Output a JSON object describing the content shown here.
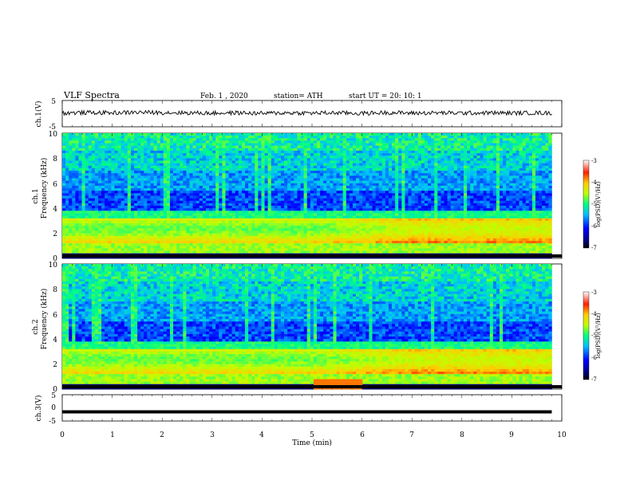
{
  "header": {
    "title": "VLF  Spectra",
    "date": "Feb. 1  , 2020",
    "station": "station= ATH",
    "start": "start  UT  =   20: 10: 1"
  },
  "chart_data": [
    {
      "type": "line",
      "panel": "ch1-waveform",
      "ylabel": "ch.1(V)",
      "ylim": [
        -5,
        5
      ],
      "yticks": [
        "5",
        "-5"
      ],
      "x": [
        0,
        0.5,
        1,
        1.5,
        2,
        2.5,
        3,
        3.5,
        4,
        4.5,
        5,
        5.5,
        6,
        6.5,
        7,
        7.5,
        8,
        8.5,
        9,
        9.5,
        9.8
      ],
      "y": [
        0.2,
        0.4,
        0.3,
        0.5,
        0.4,
        0.3,
        0.2,
        0.3,
        0.1,
        0.3,
        0.2,
        0.3,
        0.1,
        0.4,
        0.2,
        0.3,
        0.2,
        0.3,
        0.2,
        0.3,
        0.2
      ]
    },
    {
      "type": "heatmap",
      "panel": "ch1-spectrogram",
      "ylabel_channel": "ch.1",
      "ylabel": "Frequency  (kHz)",
      "ylim": [
        0,
        10
      ],
      "yticks": [
        "10",
        "8",
        "6",
        "4",
        "2",
        "0"
      ],
      "xlim": [
        0,
        10
      ],
      "colorbar": {
        "label": "log(PSD)(V²/Hz)",
        "range": [
          -7,
          -3
        ],
        "ticks": [
          "-3",
          "-4",
          "-5",
          "-6",
          "-7"
        ]
      }
    },
    {
      "type": "heatmap",
      "panel": "ch2-spectrogram",
      "ylabel_channel": "ch.2",
      "ylabel": "Frequency  (kHz)",
      "ylim": [
        0,
        10
      ],
      "yticks": [
        "10",
        "8",
        "6",
        "4",
        "2",
        "0"
      ],
      "xlim": [
        0,
        10
      ],
      "colorbar": {
        "label": "log(PSD)(V²/Hz)",
        "range": [
          -7,
          -3
        ],
        "ticks": [
          "-3",
          "-4",
          "-5",
          "-6",
          "-7"
        ]
      }
    },
    {
      "type": "line",
      "panel": "ch3-waveform",
      "ylabel": "ch.3(V)",
      "ylim": [
        -5,
        5
      ],
      "yticks": [
        "5",
        "0",
        "-5"
      ],
      "x": [
        0,
        9.8
      ],
      "y": [
        -1.5,
        -1.5
      ]
    }
  ],
  "xaxis": {
    "label": "Time  (min)",
    "ticks": [
      "0",
      "1",
      "2",
      "3",
      "4",
      "5",
      "6",
      "7",
      "8",
      "9",
      "10"
    ]
  }
}
